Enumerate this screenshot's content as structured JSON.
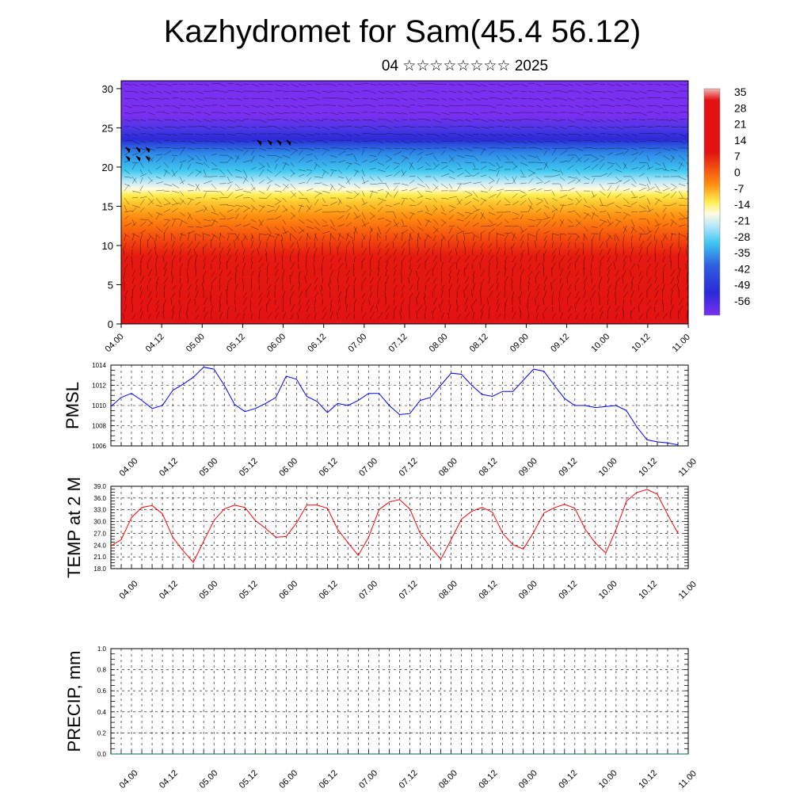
{
  "title": "Kazhydromet for Sam(45.4 56.12)",
  "subtitle": "04 ☆☆☆☆☆☆☆☆ 2025",
  "chart_data": [
    {
      "type": "heatmap",
      "description_of_axes": "",
      "x_ticks": [
        "04.00",
        "04.12",
        "05.00",
        "05.12",
        "06.00",
        "06.12",
        "07.00",
        "07.12",
        "08.00",
        "08.12",
        "09.00",
        "09.12",
        "10.00",
        "10.12",
        "11.00"
      ],
      "y_ticks": [
        "0",
        "5",
        "10",
        "15",
        "20",
        "25",
        "30"
      ],
      "ylim": [
        0,
        31
      ],
      "colorbar_labels": [
        "35",
        "28",
        "21",
        "14",
        "7",
        "0",
        "-7",
        "-14",
        "-21",
        "-28",
        "-35",
        "-42",
        "-49",
        "-56"
      ],
      "colorbar_range": [
        -60,
        38
      ],
      "colors": {
        "cold": "#7b2ff0",
        "blue": "#2a2ad8",
        "cyan": "#40c8f0",
        "yellow": "#ffee50",
        "orange": "#ff8c10",
        "red": "#e21212",
        "warm": "#f2a6a6"
      }
    },
    {
      "type": "line",
      "ylabel": "PMSL",
      "color": "#0000ff",
      "ylim": [
        1006,
        1014
      ],
      "y_ticks": [
        "1014",
        "1012",
        "1010",
        "1008",
        "1006"
      ],
      "x_ticks": [
        "04.00",
        "04.12",
        "05.00",
        "05.12",
        "06.00",
        "06.12",
        "07.00",
        "07.12",
        "08.00",
        "08.12",
        "09.00",
        "09.12",
        "10.00",
        "10.12",
        "11.00"
      ],
      "x_range": [
        0,
        168
      ],
      "x": [
        0,
        3,
        6,
        9,
        12,
        15,
        18,
        21,
        24,
        27,
        30,
        33,
        36,
        39,
        42,
        45,
        48,
        51,
        54,
        57,
        60,
        63,
        66,
        69,
        72,
        75,
        78,
        81,
        84,
        87,
        90,
        93,
        96,
        99,
        102,
        105,
        108,
        111,
        114,
        117,
        120,
        123,
        126,
        129,
        132,
        135,
        138,
        141,
        144,
        147,
        150,
        153,
        156,
        159,
        162,
        165
      ],
      "values": [
        1009.9,
        1010.8,
        1011.2,
        1010.5,
        1009.7,
        1010.0,
        1011.5,
        1012.1,
        1012.8,
        1013.8,
        1013.6,
        1012.0,
        1010.1,
        1009.4,
        1009.7,
        1010.2,
        1010.8,
        1012.9,
        1012.6,
        1010.9,
        1010.4,
        1009.3,
        1010.2,
        1010.0,
        1010.5,
        1011.2,
        1011.2,
        1010.0,
        1009.1,
        1009.2,
        1010.5,
        1010.8,
        1012.0,
        1013.2,
        1013.1,
        1012.0,
        1011.1,
        1010.9,
        1011.4,
        1011.4,
        1012.5,
        1013.6,
        1013.4,
        1012.0,
        1010.7,
        1010.0,
        1010.0,
        1009.8,
        1009.9,
        1010.0,
        1009.5,
        1007.9,
        1006.6,
        1006.4,
        1006.3,
        1006.1
      ]
    },
    {
      "type": "line",
      "ylabel": "TEMP at 2 M",
      "color": "#ff0000",
      "ylim": [
        18,
        39
      ],
      "y_ticks": [
        "39.0",
        "36.0",
        "33.0",
        "30.0",
        "27.0",
        "24.0",
        "21.0",
        "18.0"
      ],
      "x_ticks": [
        "04.00",
        "04.12",
        "05.00",
        "05.12",
        "06.00",
        "06.12",
        "07.00",
        "07.12",
        "08.00",
        "08.12",
        "09.00",
        "09.12",
        "10.00",
        "10.12",
        "11.00"
      ],
      "x_range": [
        0,
        168
      ],
      "x": [
        0,
        3,
        6,
        9,
        12,
        15,
        18,
        21,
        24,
        27,
        30,
        33,
        36,
        39,
        42,
        45,
        48,
        51,
        54,
        57,
        60,
        63,
        66,
        69,
        72,
        75,
        78,
        81,
        84,
        87,
        90,
        93,
        96,
        99,
        102,
        105,
        108,
        111,
        114,
        117,
        120,
        123,
        126,
        129,
        132,
        135,
        138,
        141,
        144,
        147,
        150,
        153,
        156,
        159,
        162,
        165
      ],
      "values": [
        23.8,
        25.4,
        31.0,
        33.6,
        34.1,
        32.0,
        26.0,
        22.6,
        19.6,
        25.0,
        30.3,
        33.2,
        34.2,
        33.6,
        30.3,
        28.3,
        26.0,
        26.2,
        29.6,
        34.2,
        34.2,
        33.4,
        28.0,
        24.6,
        21.4,
        26.0,
        33.0,
        35.0,
        35.6,
        33.2,
        27.0,
        23.5,
        20.4,
        25.4,
        30.6,
        32.6,
        33.6,
        32.4,
        27.0,
        24.1,
        23.0,
        27.2,
        32.2,
        33.5,
        34.4,
        33.4,
        28.1,
        24.5,
        22.0,
        28.0,
        35.2,
        37.4,
        38.2,
        37.0,
        31.8,
        27.0
      ]
    },
    {
      "type": "line",
      "ylabel": "PRECIP, mm",
      "color": "#0a6a40",
      "ylim": [
        0,
        1
      ],
      "y_ticks": [
        "1.0",
        "0.8",
        "0.6",
        "0.4",
        "0.2",
        "0.0"
      ],
      "x_ticks": [
        "04.00",
        "04.12",
        "05.00",
        "05.12",
        "06.00",
        "06.12",
        "07.00",
        "07.12",
        "08.00",
        "08.12",
        "09.00",
        "09.12",
        "10.00",
        "10.12",
        "11.00"
      ],
      "x_range": [
        0,
        168
      ],
      "x": [
        0,
        168
      ],
      "values": [
        0,
        0
      ]
    }
  ]
}
